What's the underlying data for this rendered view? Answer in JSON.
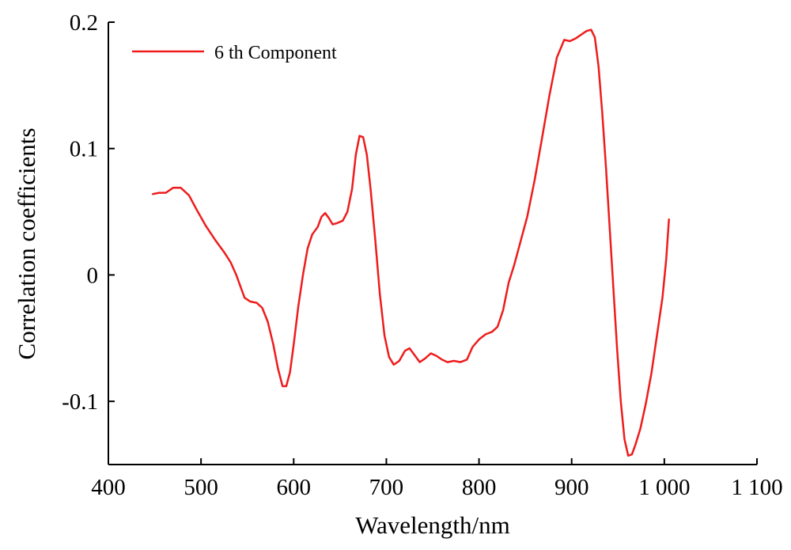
{
  "chart_data": {
    "type": "line",
    "title": "",
    "xlabel": "Wavelength/nm",
    "ylabel": "Correlation coefficients",
    "xlim": [
      400,
      1100
    ],
    "ylim": [
      -0.15,
      0.2
    ],
    "x_ticks": [
      400,
      500,
      600,
      700,
      800,
      900,
      1000,
      1100
    ],
    "x_tick_labels": [
      "400",
      "500",
      "600",
      "700",
      "800",
      "900",
      "1 000",
      "1 100"
    ],
    "y_ticks": [
      -0.1,
      0,
      0.1,
      0.2
    ],
    "y_tick_labels": [
      "-0.1",
      "0",
      "0.1",
      "0.2"
    ],
    "grid": false,
    "legend_position": "top-left",
    "series": [
      {
        "name": "6 th Component",
        "color": "#ee1c1c",
        "points": [
          [
            448,
            0.064
          ],
          [
            455,
            0.065
          ],
          [
            462,
            0.065
          ],
          [
            470,
            0.069
          ],
          [
            478,
            0.069
          ],
          [
            487,
            0.063
          ],
          [
            495,
            0.052
          ],
          [
            505,
            0.039
          ],
          [
            515,
            0.028
          ],
          [
            525,
            0.018
          ],
          [
            532,
            0.01
          ],
          [
            538,
            0.0
          ],
          [
            543,
            -0.01
          ],
          [
            547,
            -0.018
          ],
          [
            553,
            -0.021
          ],
          [
            560,
            -0.022
          ],
          [
            566,
            -0.026
          ],
          [
            572,
            -0.037
          ],
          [
            578,
            -0.055
          ],
          [
            583,
            -0.074
          ],
          [
            588,
            -0.088
          ],
          [
            592,
            -0.088
          ],
          [
            596,
            -0.077
          ],
          [
            600,
            -0.055
          ],
          [
            605,
            -0.025
          ],
          [
            610,
            0.0
          ],
          [
            615,
            0.021
          ],
          [
            620,
            0.032
          ],
          [
            626,
            0.038
          ],
          [
            630,
            0.046
          ],
          [
            634,
            0.049
          ],
          [
            638,
            0.045
          ],
          [
            642,
            0.04
          ],
          [
            647,
            0.041
          ],
          [
            653,
            0.043
          ],
          [
            658,
            0.05
          ],
          [
            663,
            0.068
          ],
          [
            667,
            0.095
          ],
          [
            671,
            0.11
          ],
          [
            675,
            0.109
          ],
          [
            679,
            0.095
          ],
          [
            683,
            0.068
          ],
          [
            688,
            0.028
          ],
          [
            693,
            -0.015
          ],
          [
            698,
            -0.048
          ],
          [
            703,
            -0.065
          ],
          [
            708,
            -0.071
          ],
          [
            714,
            -0.068
          ],
          [
            720,
            -0.06
          ],
          [
            725,
            -0.058
          ],
          [
            730,
            -0.063
          ],
          [
            736,
            -0.069
          ],
          [
            742,
            -0.066
          ],
          [
            748,
            -0.062
          ],
          [
            754,
            -0.064
          ],
          [
            760,
            -0.067
          ],
          [
            766,
            -0.069
          ],
          [
            773,
            -0.068
          ],
          [
            780,
            -0.069
          ],
          [
            787,
            -0.067
          ],
          [
            793,
            -0.057
          ],
          [
            800,
            -0.051
          ],
          [
            807,
            -0.047
          ],
          [
            814,
            -0.045
          ],
          [
            820,
            -0.041
          ],
          [
            826,
            -0.028
          ],
          [
            832,
            -0.006
          ],
          [
            838,
            0.008
          ],
          [
            845,
            0.027
          ],
          [
            852,
            0.046
          ],
          [
            860,
            0.075
          ],
          [
            868,
            0.108
          ],
          [
            876,
            0.142
          ],
          [
            884,
            0.172
          ],
          [
            892,
            0.186
          ],
          [
            898,
            0.185
          ],
          [
            904,
            0.187
          ],
          [
            910,
            0.19
          ],
          [
            916,
            0.193
          ],
          [
            921,
            0.194
          ],
          [
            925,
            0.188
          ],
          [
            929,
            0.165
          ],
          [
            933,
            0.128
          ],
          [
            937,
            0.085
          ],
          [
            941,
            0.038
          ],
          [
            945,
            -0.01
          ],
          [
            949,
            -0.058
          ],
          [
            953,
            -0.1
          ],
          [
            957,
            -0.13
          ],
          [
            961,
            -0.143
          ],
          [
            965,
            -0.142
          ],
          [
            969,
            -0.134
          ],
          [
            974,
            -0.122
          ],
          [
            980,
            -0.102
          ],
          [
            986,
            -0.078
          ],
          [
            992,
            -0.048
          ],
          [
            998,
            -0.018
          ],
          [
            1002,
            0.012
          ],
          [
            1005,
            0.044
          ]
        ]
      }
    ]
  }
}
